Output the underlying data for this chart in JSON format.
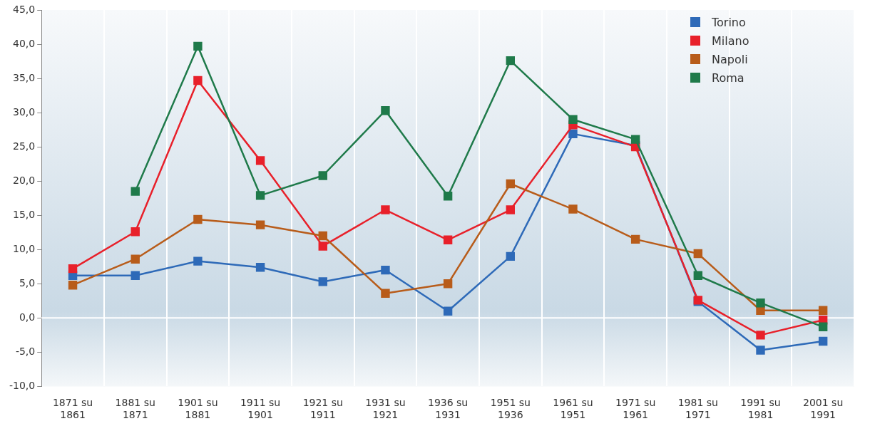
{
  "chart_data": {
    "type": "line",
    "categories": [
      "1871 su 1861",
      "1881 su 1871",
      "1901 su 1881",
      "1911 su 1901",
      "1921 su 1911",
      "1931 su 1921",
      "1936 su 1931",
      "1951 su 1936",
      "1961 su 1951",
      "1971 su 1961",
      "1981 su 1971",
      "1991 su 1981",
      "2001 su 1991"
    ],
    "series": [
      {
        "name": "Torino",
        "color": "#2e6ab8",
        "values": [
          6.2,
          6.2,
          8.3,
          7.4,
          5.3,
          7.0,
          1.0,
          9.0,
          26.9,
          25.2,
          2.4,
          -4.7,
          -3.4
        ]
      },
      {
        "name": "Milano",
        "color": "#e8202a",
        "values": [
          7.2,
          12.6,
          34.7,
          23.0,
          10.5,
          15.8,
          11.4,
          15.8,
          28.2,
          25.0,
          2.6,
          -2.5,
          -0.3
        ]
      },
      {
        "name": "Napoli",
        "color": "#b85c1a",
        "values": [
          4.8,
          8.6,
          14.4,
          13.6,
          12.0,
          3.6,
          5.0,
          19.6,
          15.9,
          11.5,
          9.4,
          1.1,
          1.1
        ]
      },
      {
        "name": "Roma",
        "color": "#1f7a4a",
        "values": [
          null,
          18.5,
          39.7,
          17.9,
          20.8,
          30.3,
          17.8,
          37.6,
          29.0,
          26.1,
          6.2,
          2.2,
          -1.3
        ]
      }
    ],
    "ylim": [
      -10,
      45
    ],
    "yticks": [
      {
        "value": -10,
        "label": "-10,0"
      },
      {
        "value": -5,
        "label": "-5,0"
      },
      {
        "value": 0,
        "label": "0,0"
      },
      {
        "value": 5,
        "label": "5,0"
      },
      {
        "value": 10,
        "label": "10,0"
      },
      {
        "value": 15,
        "label": "15,0"
      },
      {
        "value": 20,
        "label": "20,0"
      },
      {
        "value": 25,
        "label": "25,0"
      },
      {
        "value": 30,
        "label": "30,0"
      },
      {
        "value": 35,
        "label": "35,0"
      },
      {
        "value": 40,
        "label": "40,0"
      },
      {
        "value": 45,
        "label": "45,0"
      }
    ],
    "ref_lines": [
      {
        "axis": "y",
        "value": 0,
        "color": "#ffffff"
      }
    ],
    "grid": "x",
    "legend": "top right",
    "marker": "square",
    "line_style": "solid"
  }
}
